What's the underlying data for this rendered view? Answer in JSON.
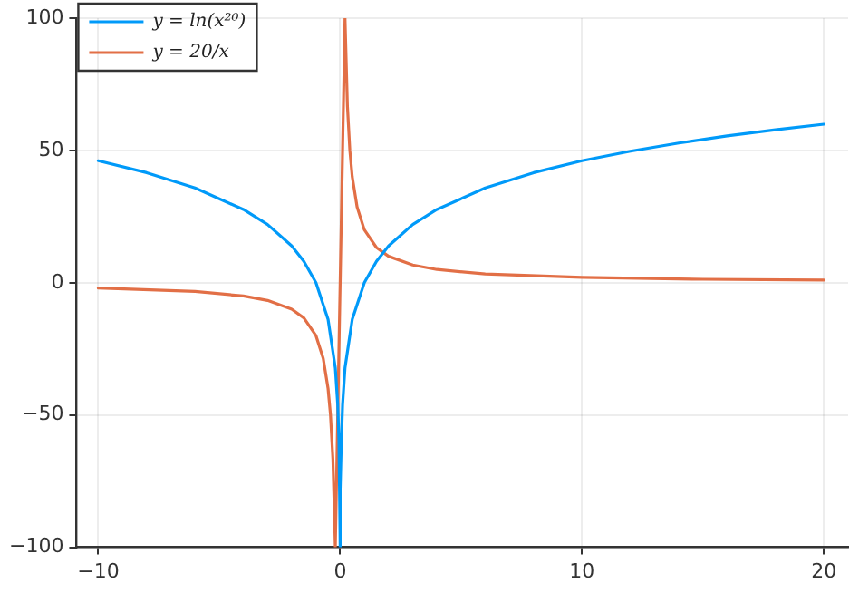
{
  "chart_data": {
    "type": "line",
    "xlim": [
      -10.9,
      21
    ],
    "ylim": [
      -100,
      100
    ],
    "xticks": [
      {
        "value": -10,
        "label": "−10"
      },
      0,
      10,
      20
    ],
    "yticks": [
      {
        "value": -100,
        "label": "−100"
      },
      {
        "value": -50,
        "label": "−50"
      },
      0,
      50,
      100
    ],
    "grid": true,
    "legend": "top left",
    "marker": "none",
    "line_style": "solid",
    "series": [
      {
        "name": "y = ln(x²⁰)",
        "color": "#009af9",
        "x": [
          -10,
          -8,
          -6,
          -4,
          -3,
          -2,
          -1.5,
          -1,
          -0.5,
          -0.2,
          -0.1,
          -0.05,
          -0.02,
          -0.0067,
          0.0067,
          0.02,
          0.05,
          0.1,
          0.2,
          0.5,
          1,
          1.5,
          2,
          3,
          4,
          6,
          8,
          10,
          12,
          14,
          16,
          18,
          20
        ],
        "values": [
          46.1,
          41.6,
          35.8,
          27.7,
          22,
          13.9,
          8.1,
          0,
          -13.9,
          -32.2,
          -46.1,
          -59.9,
          -78.2,
          -100,
          -100,
          -78.2,
          -59.9,
          -46.1,
          -32.2,
          -13.9,
          0,
          8.1,
          13.9,
          22,
          27.7,
          35.8,
          41.6,
          46.1,
          49.7,
          52.8,
          55.5,
          57.8,
          59.9
        ]
      },
      {
        "name": "y = 20/x",
        "color": "#e26f46",
        "x": [
          -10,
          -6,
          -4,
          -3,
          -2,
          -1.5,
          -1,
          -0.7,
          -0.5,
          -0.4,
          -0.3,
          -0.2,
          0.2,
          0.3,
          0.4,
          0.5,
          0.7,
          1,
          1.5,
          2,
          3,
          4,
          6,
          10,
          15,
          20
        ],
        "values": [
          -2,
          -3.3,
          -5,
          -6.7,
          -10,
          -13.3,
          -20,
          -28.6,
          -40,
          -50,
          -66.7,
          -100,
          100,
          66.7,
          50,
          40,
          28.6,
          20,
          13.3,
          10,
          6.7,
          5,
          3.3,
          2,
          1.3,
          1
        ]
      }
    ]
  }
}
